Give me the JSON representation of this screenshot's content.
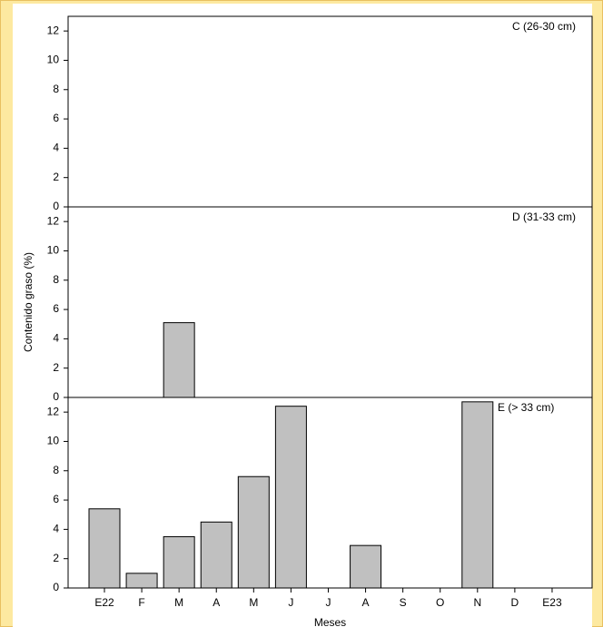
{
  "chart_data": [
    {
      "type": "bar",
      "panel_label": "C (26-30 cm)",
      "color": "#c0c0c0",
      "values": [
        null,
        null,
        null,
        null,
        null,
        null,
        null,
        null,
        null,
        null,
        null,
        null,
        null
      ],
      "ylim": [
        0,
        13
      ],
      "yticks": [
        0,
        2,
        4,
        6,
        8,
        10,
        12
      ]
    },
    {
      "type": "bar",
      "panel_label": "D (31-33 cm)",
      "color": "#c0c0c0",
      "ylabel": "Contenido graso (%)",
      "values": [
        null,
        null,
        5.1,
        null,
        null,
        null,
        null,
        null,
        null,
        null,
        null,
        null,
        null
      ],
      "ylim": [
        0,
        13
      ],
      "yticks": [
        0,
        2,
        4,
        6,
        8,
        10,
        12
      ]
    },
    {
      "type": "bar",
      "panel_label": "E (> 33 cm)",
      "color": "#c0c0c0",
      "xlabel": "Meses",
      "categories": [
        "E22",
        "F",
        "M",
        "A",
        "M",
        "J",
        "J",
        "A",
        "S",
        "O",
        "N",
        "D",
        "E23"
      ],
      "values": [
        5.4,
        1.0,
        3.5,
        4.5,
        7.6,
        12.4,
        null,
        2.9,
        null,
        null,
        12.7,
        null,
        null
      ],
      "ylim": [
        0,
        13
      ],
      "yticks": [
        0,
        2,
        4,
        6,
        8,
        10,
        12
      ]
    }
  ]
}
